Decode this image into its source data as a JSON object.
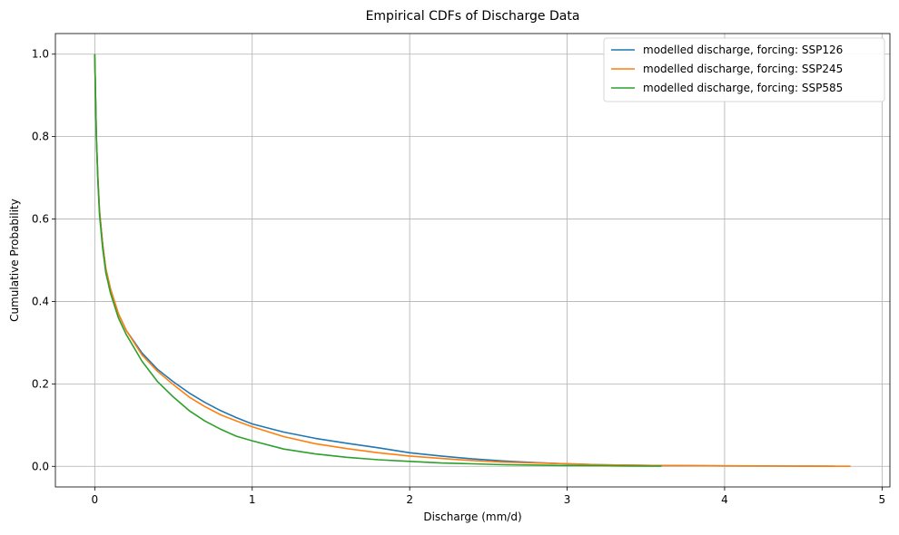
{
  "chart_data": {
    "type": "line",
    "title": "Empirical CDFs of Discharge Data",
    "xlabel": "Discharge (mm/d)",
    "ylabel": "Cumulative Probability",
    "xlim": [
      -0.25,
      5.05
    ],
    "ylim": [
      -0.05,
      1.05
    ],
    "xticks": [
      0,
      1,
      2,
      3,
      4,
      5
    ],
    "xtick_labels": [
      "0",
      "1",
      "2",
      "3",
      "4",
      "5"
    ],
    "yticks": [
      0.0,
      0.2,
      0.4,
      0.6,
      0.8,
      1.0
    ],
    "ytick_labels": [
      "0.0",
      "0.2",
      "0.4",
      "0.6",
      "0.8",
      "1.0"
    ],
    "grid": true,
    "legend_position": "top-right",
    "series": [
      {
        "name": "modelled discharge, forcing: SSP126",
        "color": "#1f77b4",
        "x": [
          0,
          0.01,
          0.02,
          0.03,
          0.05,
          0.07,
          0.1,
          0.15,
          0.2,
          0.3,
          0.4,
          0.5,
          0.6,
          0.7,
          0.8,
          0.9,
          1.0,
          1.2,
          1.4,
          1.6,
          1.8,
          2.0,
          2.2,
          2.4,
          2.6,
          2.8,
          3.0,
          3.2,
          3.6,
          4.0,
          4.4,
          4.7
        ],
        "y": [
          1.0,
          0.8,
          0.7,
          0.62,
          0.54,
          0.48,
          0.43,
          0.37,
          0.33,
          0.275,
          0.235,
          0.205,
          0.178,
          0.155,
          0.135,
          0.118,
          0.103,
          0.083,
          0.068,
          0.056,
          0.045,
          0.033,
          0.025,
          0.018,
          0.013,
          0.009,
          0.006,
          0.004,
          0.002,
          0.001,
          0.0006,
          0.0002
        ]
      },
      {
        "name": "modelled discharge, forcing: SSP245",
        "color": "#ff7f0e",
        "x": [
          0,
          0.01,
          0.02,
          0.03,
          0.05,
          0.07,
          0.1,
          0.15,
          0.2,
          0.3,
          0.4,
          0.5,
          0.6,
          0.7,
          0.8,
          0.9,
          1.0,
          1.2,
          1.4,
          1.6,
          1.8,
          2.0,
          2.2,
          2.4,
          2.6,
          2.8,
          3.0,
          3.2,
          3.6,
          4.0,
          4.4,
          4.8
        ],
        "y": [
          1.0,
          0.8,
          0.7,
          0.62,
          0.54,
          0.48,
          0.43,
          0.37,
          0.33,
          0.27,
          0.23,
          0.198,
          0.168,
          0.145,
          0.125,
          0.11,
          0.096,
          0.072,
          0.055,
          0.043,
          0.033,
          0.025,
          0.019,
          0.014,
          0.01,
          0.008,
          0.006,
          0.004,
          0.002,
          0.0012,
          0.0006,
          0.0001
        ]
      },
      {
        "name": "modelled discharge, forcing: SSP585",
        "color": "#2ca02c",
        "x": [
          0,
          0.01,
          0.02,
          0.03,
          0.05,
          0.07,
          0.1,
          0.15,
          0.2,
          0.3,
          0.4,
          0.5,
          0.6,
          0.7,
          0.8,
          0.9,
          1.0,
          1.2,
          1.4,
          1.6,
          1.8,
          2.0,
          2.2,
          2.4,
          2.6,
          2.8,
          3.0,
          3.2,
          3.4,
          3.6
        ],
        "y": [
          1.0,
          0.8,
          0.69,
          0.61,
          0.53,
          0.47,
          0.42,
          0.36,
          0.32,
          0.255,
          0.205,
          0.168,
          0.135,
          0.11,
          0.09,
          0.073,
          0.062,
          0.042,
          0.03,
          0.022,
          0.016,
          0.012,
          0.008,
          0.006,
          0.004,
          0.003,
          0.002,
          0.0015,
          0.0008,
          0.0003
        ]
      }
    ]
  }
}
